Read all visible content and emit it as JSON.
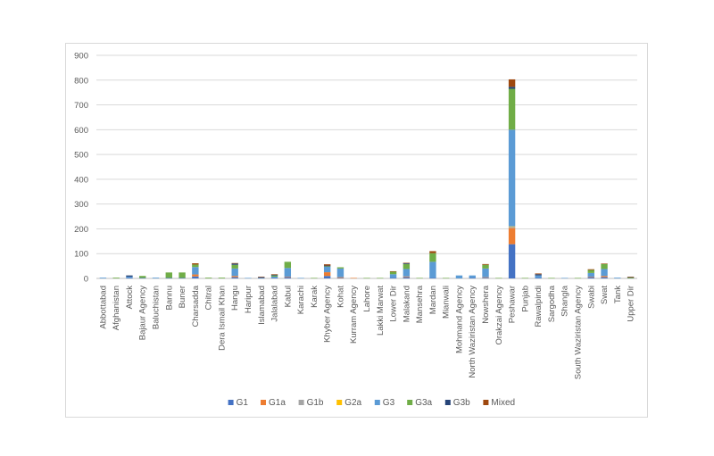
{
  "chart_data": {
    "type": "bar",
    "stacked": true,
    "title": "",
    "xlabel": "",
    "ylabel": "",
    "ylim": [
      0,
      900
    ],
    "yticks": [
      0,
      100,
      200,
      300,
      400,
      500,
      600,
      700,
      800,
      900
    ],
    "grid": true,
    "legend_position": "bottom",
    "categories": [
      "Abbottabad",
      "Afghanistan",
      "Attock",
      "Bajaur Agency",
      "Baluchistan",
      "Bannu",
      "Buner",
      "Charsadda",
      "Chitral",
      "Dera Ismail Khan",
      "Hangu",
      "Haripur",
      "Islamabad",
      "Jalalabad",
      "Kabul",
      "Karachi",
      "Karak",
      "Khyber Agency",
      "Kohat",
      "Kurram Agency",
      "Lahore",
      "Lakki Marwat",
      "Lower Dir",
      "Malakand",
      "Mansehra",
      "Mardan",
      "Mianwali",
      "Mohmand Agency",
      "North Waziristan Agency",
      "Nowshera",
      "Orakzai Agency",
      "Peshawar",
      "Punjab",
      "Rawalpindi",
      "Sargodha",
      "Shangla",
      "South Waziristan Agency",
      "Swabi",
      "Swat",
      "Tank",
      "Upper Dir"
    ],
    "series": [
      {
        "name": "G1",
        "color": "#4472c4",
        "values": [
          0,
          0,
          2,
          2,
          0,
          2,
          2,
          8,
          0,
          0,
          5,
          0,
          0,
          2,
          5,
          0,
          0,
          10,
          2,
          0,
          0,
          0,
          2,
          5,
          0,
          2,
          0,
          0,
          2,
          3,
          0,
          138,
          0,
          2,
          0,
          0,
          0,
          5,
          5,
          0,
          0
        ]
      },
      {
        "name": "G1a",
        "color": "#ed7d31",
        "values": [
          0,
          0,
          0,
          0,
          0,
          0,
          0,
          8,
          0,
          0,
          5,
          0,
          0,
          0,
          2,
          0,
          0,
          15,
          3,
          2,
          0,
          0,
          0,
          3,
          0,
          0,
          0,
          0,
          0,
          2,
          0,
          65,
          0,
          0,
          0,
          0,
          0,
          2,
          5,
          0,
          0
        ]
      },
      {
        "name": "G1b",
        "color": "#a5a5a5",
        "values": [
          0,
          0,
          0,
          0,
          0,
          0,
          0,
          0,
          0,
          0,
          0,
          0,
          0,
          0,
          0,
          0,
          0,
          0,
          0,
          0,
          0,
          0,
          0,
          0,
          0,
          0,
          0,
          0,
          0,
          0,
          0,
          5,
          0,
          0,
          0,
          0,
          0,
          0,
          0,
          0,
          0
        ]
      },
      {
        "name": "G2a",
        "color": "#ffc000",
        "values": [
          0,
          0,
          0,
          0,
          0,
          0,
          0,
          0,
          0,
          0,
          0,
          0,
          0,
          0,
          0,
          0,
          0,
          0,
          0,
          0,
          0,
          0,
          0,
          0,
          0,
          0,
          0,
          0,
          0,
          0,
          0,
          2,
          0,
          0,
          0,
          0,
          0,
          0,
          0,
          0,
          0
        ]
      },
      {
        "name": "G3",
        "color": "#5b9bd5",
        "values": [
          3,
          0,
          5,
          0,
          3,
          0,
          0,
          30,
          0,
          0,
          30,
          2,
          2,
          5,
          35,
          2,
          0,
          22,
          35,
          0,
          0,
          0,
          15,
          30,
          0,
          65,
          0,
          12,
          10,
          35,
          0,
          390,
          0,
          10,
          0,
          2,
          0,
          15,
          28,
          3,
          0
        ]
      },
      {
        "name": "G3a",
        "color": "#70ad47",
        "values": [
          0,
          3,
          0,
          8,
          0,
          22,
          22,
          10,
          3,
          3,
          15,
          0,
          0,
          5,
          25,
          0,
          2,
          2,
          5,
          0,
          2,
          2,
          10,
          20,
          2,
          35,
          2,
          0,
          0,
          15,
          2,
          165,
          2,
          0,
          2,
          0,
          2,
          12,
          20,
          0,
          3
        ]
      },
      {
        "name": "G3b",
        "color": "#264478",
        "values": [
          0,
          0,
          5,
          0,
          0,
          0,
          0,
          0,
          0,
          0,
          5,
          0,
          3,
          3,
          0,
          0,
          0,
          3,
          0,
          0,
          0,
          0,
          0,
          3,
          0,
          0,
          0,
          0,
          0,
          0,
          0,
          8,
          0,
          5,
          0,
          0,
          0,
          0,
          0,
          0,
          2
        ]
      },
      {
        "name": "Mixed",
        "color": "#9e480e",
        "values": [
          0,
          0,
          0,
          0,
          0,
          0,
          0,
          5,
          0,
          0,
          2,
          0,
          2,
          2,
          0,
          0,
          0,
          5,
          0,
          0,
          0,
          0,
          2,
          2,
          0,
          8,
          0,
          0,
          0,
          3,
          0,
          30,
          0,
          3,
          0,
          0,
          0,
          3,
          2,
          0,
          2
        ]
      }
    ]
  }
}
